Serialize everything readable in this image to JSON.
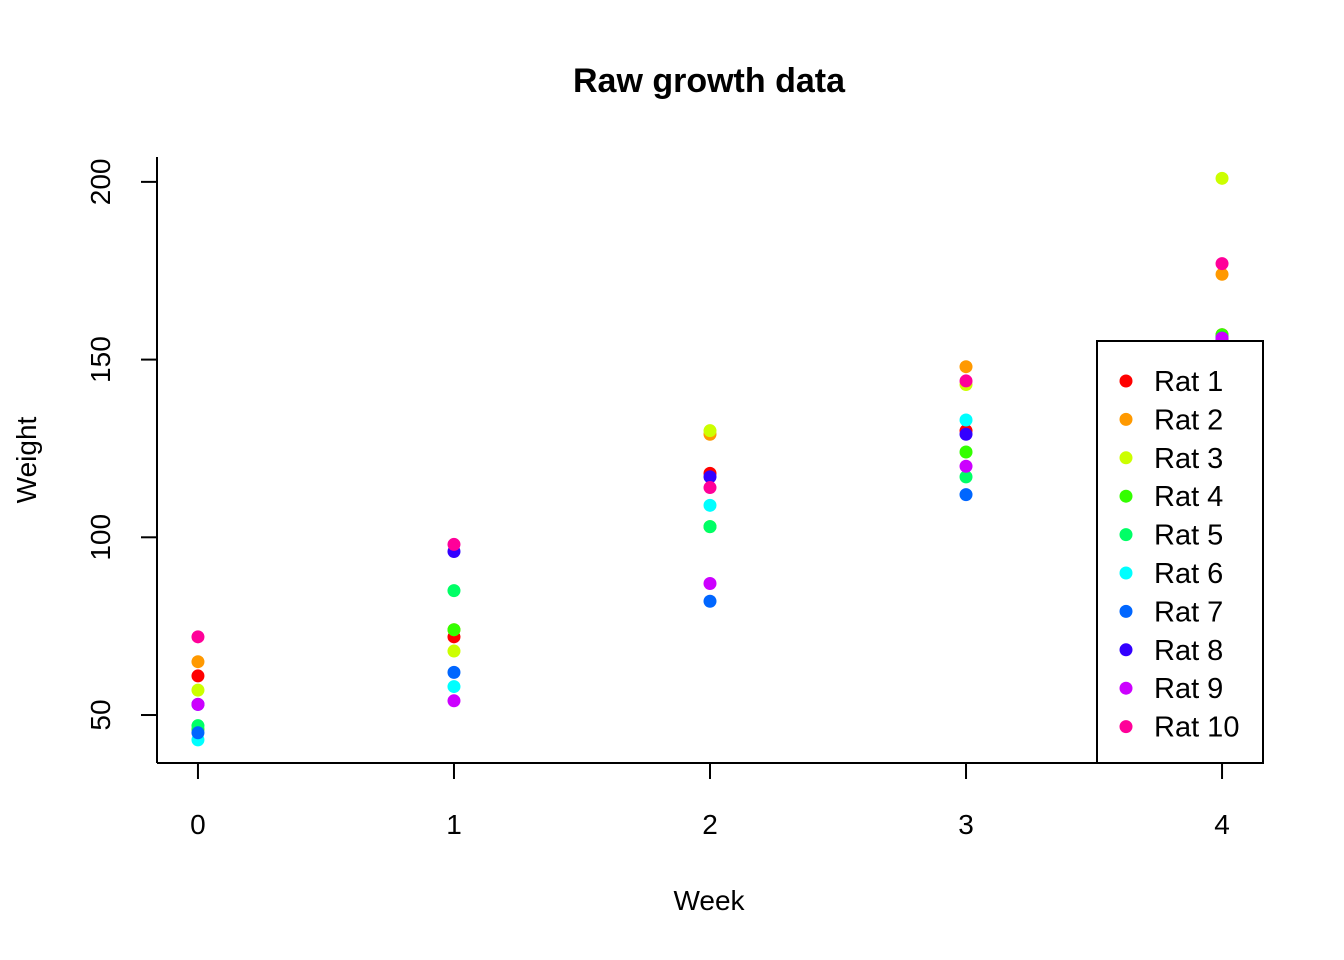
{
  "chart_data": {
    "type": "scatter",
    "title": "Raw growth data",
    "xlabel": "Week",
    "ylabel": "Weight",
    "xlim": [
      -0.16,
      4.16
    ],
    "ylim": [
      36.5,
      207
    ],
    "xticks": [
      "0",
      "1",
      "2",
      "3",
      "4"
    ],
    "yticks": [
      "50",
      "100",
      "150",
      "200"
    ],
    "grid": false,
    "legend_position": "right",
    "x": [
      0,
      1,
      2,
      3,
      4
    ],
    "series": [
      {
        "name": "Rat 1",
        "color": "#FF0000",
        "values": [
          61,
          72,
          118,
          130,
          157
        ]
      },
      {
        "name": "Rat 2",
        "color": "#FF9900",
        "values": [
          65,
          74,
          129,
          148,
          174
        ]
      },
      {
        "name": "Rat 3",
        "color": "#CCFF00",
        "values": [
          57,
          68,
          130,
          143,
          201
        ]
      },
      {
        "name": "Rat 4",
        "color": "#33FF00",
        "values": [
          46,
          74,
          103,
          124,
          157
        ]
      },
      {
        "name": "Rat 5",
        "color": "#00FF66",
        "values": [
          47,
          85,
          103,
          117,
          156
        ]
      },
      {
        "name": "Rat 6",
        "color": "#00FFFF",
        "values": [
          43,
          58,
          109,
          133,
          156
        ]
      },
      {
        "name": "Rat 7",
        "color": "#0066FF",
        "values": [
          45,
          62,
          82,
          112,
          156
        ]
      },
      {
        "name": "Rat 8",
        "color": "#3300FF",
        "values": [
          53,
          96,
          117,
          129,
          156
        ]
      },
      {
        "name": "Rat 9",
        "color": "#CC00FF",
        "values": [
          53,
          54,
          87,
          120,
          156
        ]
      },
      {
        "name": "Rat 10",
        "color": "#FF0099",
        "values": [
          72,
          98,
          114,
          144,
          177
        ]
      }
    ]
  }
}
